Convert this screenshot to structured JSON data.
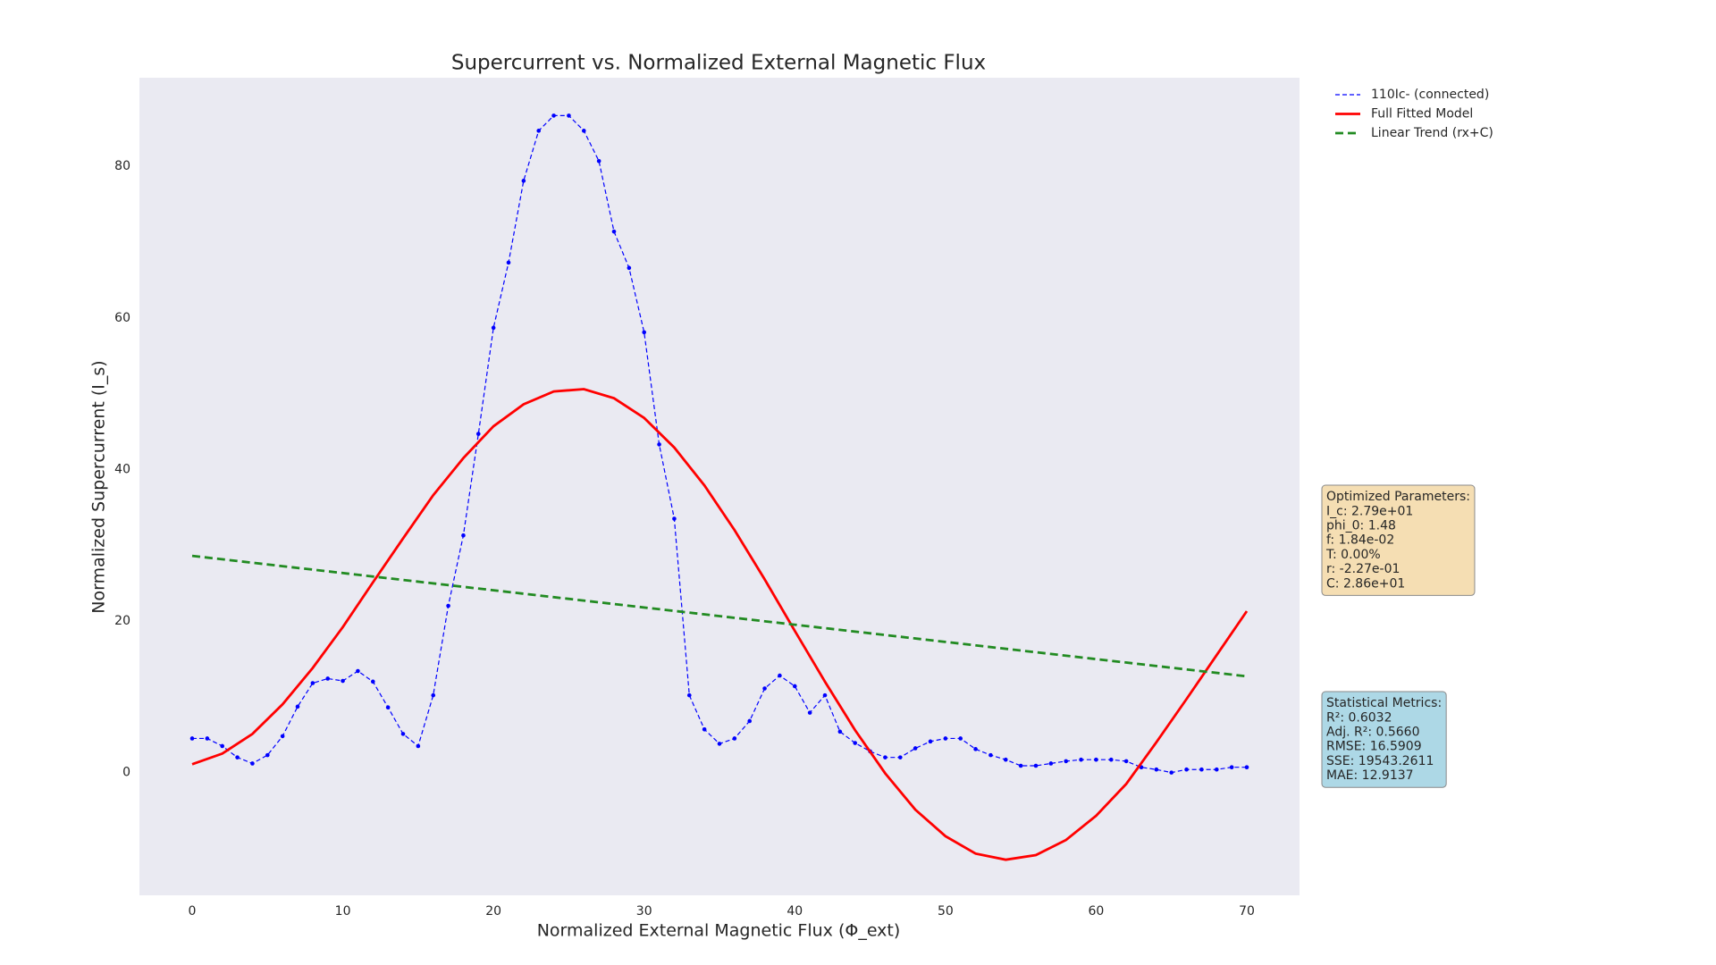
{
  "chart_data": {
    "type": "line",
    "title": "Supercurrent vs. Normalized External Magnetic Flux",
    "x_label": "Normalized External Magnetic Flux (Φ_ext)",
    "y_label": "Normalized Supercurrent (I_s)",
    "xlim": [
      -3.5,
      73.5
    ],
    "ylim": [
      -16.2,
      91.7
    ],
    "xticks": [
      0,
      10,
      20,
      30,
      40,
      50,
      60,
      70
    ],
    "yticks": [
      0,
      20,
      40,
      60,
      80
    ],
    "grid": false,
    "legend": "outside-upper-right",
    "series": [
      {
        "name": "110Ic- (connected)",
        "color": "#0000ff",
        "linestyle": "dashed",
        "marker": true,
        "x": [
          0,
          1,
          2,
          3,
          4,
          5,
          6,
          7,
          8,
          9,
          10,
          11,
          12,
          13,
          14,
          15,
          16,
          17,
          18,
          19,
          20,
          21,
          22,
          23,
          24,
          25,
          26,
          27,
          28,
          29,
          30,
          31,
          32,
          33,
          34,
          35,
          36,
          37,
          38,
          39,
          40,
          41,
          42,
          43,
          44,
          45,
          46,
          47,
          48,
          49,
          50,
          51,
          52,
          53,
          54,
          55,
          56,
          57,
          58,
          59,
          60,
          61,
          62,
          63,
          64,
          65,
          66,
          67,
          68,
          69,
          70
        ],
        "values": [
          4.5,
          4.5,
          3.5,
          2,
          1.2,
          2.3,
          4.8,
          8.7,
          11.8,
          12.4,
          12.1,
          13.4,
          12,
          8.6,
          5.1,
          3.5,
          10.2,
          22,
          31.3,
          44.7,
          58.7,
          67.3,
          78.1,
          84.7,
          86.7,
          86.7,
          84.7,
          80.7,
          71.4,
          66.6,
          58.1,
          43.3,
          33.5,
          10.2,
          5.7,
          3.8,
          4.5,
          6.8,
          11.1,
          12.8,
          11.4,
          7.9,
          10.2,
          5.4,
          3.9,
          2.8,
          2,
          2,
          3.2,
          4.1,
          4.5,
          4.5,
          3.1,
          2.3,
          1.7,
          0.9,
          0.9,
          1.2,
          1.5,
          1.7,
          1.7,
          1.7,
          1.5,
          0.7,
          0.4,
          0,
          0.4,
          0.4,
          0.4,
          0.7,
          0.7
        ]
      },
      {
        "name": "Full Fitted Model",
        "color": "#ff0000",
        "linestyle": "solid",
        "marker": false,
        "x": [
          0,
          2,
          4,
          6,
          8,
          10,
          12,
          14,
          16,
          18,
          20,
          22,
          24,
          26,
          28,
          30,
          32,
          34,
          36,
          38,
          40,
          42,
          44,
          46,
          48,
          50,
          52,
          54,
          56,
          58,
          60,
          62,
          64,
          66,
          68,
          70
        ],
        "values": [
          1.1,
          2.5,
          5.1,
          9.0,
          13.8,
          19.2,
          25.1,
          30.9,
          36.6,
          41.5,
          45.7,
          48.6,
          50.3,
          50.6,
          49.4,
          46.8,
          42.9,
          37.9,
          32.0,
          25.5,
          18.7,
          12.0,
          5.6,
          -0.1,
          -4.9,
          -8.4,
          -10.7,
          -11.5,
          -10.9,
          -8.9,
          -5.7,
          -1.5,
          4.0,
          9.7,
          15.5,
          21.3
        ]
      },
      {
        "name": "Linear Trend (rx+C)",
        "color": "#228b22",
        "linestyle": "longdash",
        "marker": false,
        "x": [
          0,
          70
        ],
        "values": [
          28.6,
          12.7
        ]
      }
    ],
    "annotations": [
      {
        "title": "Optimized Parameters:",
        "color": "#f5deb3",
        "lines": [
          "I_c: 2.79e+01",
          "phi_0: 1.48",
          "f: 1.84e-02",
          "T: 0.00%",
          "r: -2.27e-01",
          "C: 2.86e+01"
        ]
      },
      {
        "title": "Statistical Metrics:",
        "color": "#add8e6",
        "lines": [
          "R²: 0.6032",
          "Adj. R²: 0.5660",
          "RMSE: 16.5909",
          "SSE: 19543.2611",
          "MAE: 12.9137"
        ]
      }
    ]
  }
}
